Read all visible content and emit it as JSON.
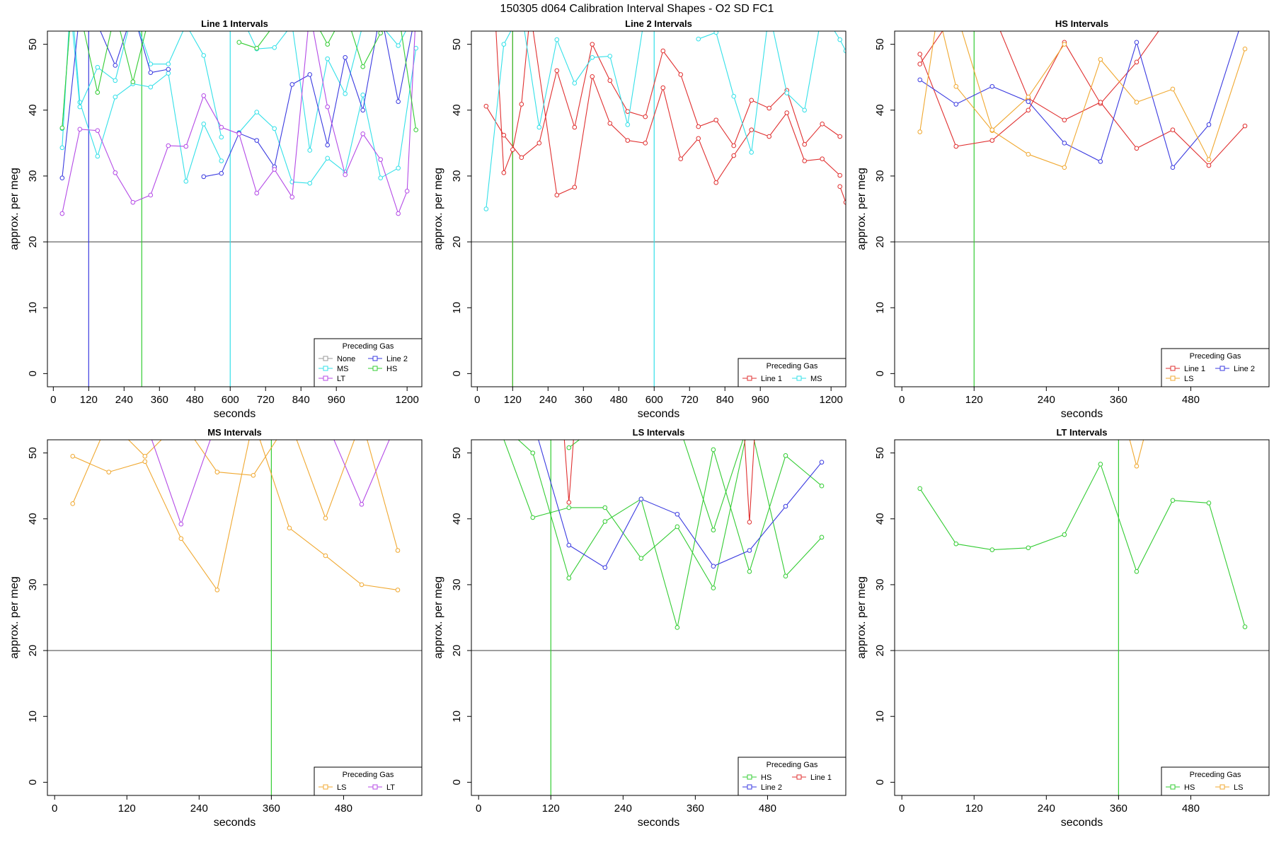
{
  "figure": {
    "title": "150305   d064   Calibration Interval Shapes - O2 SD FC1",
    "legend_title": "Preceding Gas"
  },
  "colors": {
    "None": "#999999",
    "MS": "#33e0e8",
    "LT": "#b44ae6",
    "Line 2": "#3a3ae0",
    "HS": "#33cc33",
    "Line 1": "#e03030",
    "LS": "#f0a830",
    "reference": "#555555",
    "frame": "#000000"
  },
  "chart_data": [
    {
      "type": "line",
      "title": "Line 1 Intervals",
      "xlabel": "seconds",
      "ylabel": "approx. per meg",
      "xlim": [
        -20,
        1250
      ],
      "ylim": [
        -2,
        52
      ],
      "xticks": [
        0,
        120,
        240,
        360,
        480,
        600,
        720,
        840,
        960,
        1200
      ],
      "yticks": [
        0,
        10,
        20,
        30,
        40,
        50
      ],
      "hline": 20,
      "vlines": [
        {
          "x": 120,
          "color": "#3a3ae0"
        },
        {
          "x": 300,
          "color": "#33cc33"
        },
        {
          "x": 600,
          "color": "#33e0e8"
        }
      ],
      "legend": {
        "position": "bottom-right",
        "columns": 2,
        "entries": [
          "None",
          "Line 2",
          "MS",
          "HS",
          "LT"
        ]
      },
      "series": [
        {
          "name": "MS",
          "x": [
            30,
            60,
            90,
            150,
            210,
            270,
            330,
            390,
            450,
            510,
            570
          ],
          "y": [
            34.3,
            58,
            41.2,
            33,
            42,
            44,
            43.5,
            45.6,
            29.2,
            37.9,
            32.3
          ]
        },
        {
          "name": "MS",
          "x": [
            30,
            60,
            90,
            150,
            210,
            270,
            330,
            390,
            450,
            510,
            570
          ],
          "y": [
            37.2,
            55,
            40.5,
            46.5,
            44.5,
            55,
            47,
            47,
            53,
            48.3,
            35.9
          ]
        },
        {
          "name": "MS",
          "x": [
            630,
            690,
            750,
            810,
            870,
            930,
            990,
            1050,
            1110,
            1170,
            1230
          ],
          "y": [
            36.6,
            39.7,
            37.2,
            29.1,
            28.9,
            32.7,
            30.6,
            42.3,
            29.7,
            31.2,
            49.4
          ]
        },
        {
          "name": "MS",
          "x": [
            630,
            690,
            750,
            810,
            870,
            930,
            990,
            1050,
            1110,
            1170,
            1230
          ],
          "y": [
            55,
            49.3,
            49.5,
            53,
            33.9,
            47.8,
            42.5,
            53,
            53,
            49.8,
            55
          ]
        },
        {
          "name": "Line 2",
          "x": [
            30,
            90,
            150,
            210,
            270,
            330,
            390
          ],
          "y": [
            29.7,
            55,
            53,
            46.8,
            55,
            45.7,
            46.2
          ]
        },
        {
          "name": "Line 2",
          "x": [
            510,
            570,
            630,
            690,
            750,
            810,
            870,
            930,
            990,
            1050,
            1110,
            1170,
            1230
          ],
          "y": [
            29.9,
            30.4,
            36.5,
            35.4,
            31.4,
            43.9,
            45.4,
            34.7,
            48,
            40,
            55,
            41.3,
            55
          ]
        },
        {
          "name": "LT",
          "x": [
            30,
            90,
            150,
            210,
            270,
            330,
            390,
            450,
            510,
            570,
            630,
            690,
            750,
            810,
            870,
            930,
            990,
            1050,
            1110,
            1170,
            1200,
            1230
          ],
          "y": [
            24.3,
            37.1,
            36.9,
            30.5,
            26,
            27.1,
            34.6,
            34.5,
            42.2,
            37.4,
            36.4,
            27.4,
            31,
            26.8,
            55,
            40.5,
            30.2,
            36.4,
            32.5,
            24.3,
            27.7,
            55
          ]
        },
        {
          "name": "HS",
          "x": [
            30,
            60,
            90,
            150,
            210,
            270,
            330
          ],
          "y": [
            37.3,
            55,
            55,
            42.7,
            55,
            44.3,
            55
          ]
        },
        {
          "name": "HS",
          "x": [
            630,
            690,
            750,
            810,
            870,
            930,
            990,
            1050,
            1110,
            1170,
            1230
          ],
          "y": [
            50.3,
            49.4,
            53,
            55,
            55,
            50,
            55,
            46.6,
            51.7,
            55,
            37
          ]
        }
      ]
    },
    {
      "type": "line",
      "title": "Line 2 Intervals",
      "xlabel": "seconds",
      "ylabel": "approx. per meg",
      "xlim": [
        -20,
        1250
      ],
      "ylim": [
        -2,
        52
      ],
      "xticks": [
        0,
        120,
        240,
        360,
        480,
        600,
        720,
        840,
        960,
        1200
      ],
      "yticks": [
        0,
        10,
        20,
        30,
        40,
        50
      ],
      "hline": 20,
      "vlines": [
        {
          "x": 120,
          "color": "#e03030"
        },
        {
          "x": 120,
          "color": "#33cc33"
        },
        {
          "x": 600,
          "color": "#33e0e8"
        }
      ],
      "legend": {
        "position": "bottom-right",
        "columns": 2,
        "entries": [
          "Line 1",
          "MS"
        ]
      },
      "series": [
        {
          "name": "Line 1",
          "x": [
            30,
            90,
            150,
            210,
            270,
            330,
            390,
            450,
            510,
            570,
            630,
            690,
            750,
            810,
            870,
            930,
            990,
            1050,
            1110,
            1170,
            1230
          ],
          "y": [
            40.6,
            36.2,
            32.8,
            35,
            46,
            37.4,
            50,
            44.5,
            39.8,
            39,
            49,
            45.4,
            37.5,
            38.5,
            34.6,
            41.5,
            40.3,
            43,
            34.8,
            37.9,
            36
          ]
        },
        {
          "name": "Line 1",
          "x": [
            60,
            90,
            120,
            150,
            180,
            270,
            330,
            390,
            450,
            510,
            570,
            630,
            690,
            750,
            810,
            870,
            930,
            990,
            1050,
            1110,
            1170,
            1230
          ],
          "y": [
            55,
            30.5,
            34,
            40.9,
            55,
            27.1,
            28.3,
            45.1,
            38,
            35.4,
            35,
            43.4,
            32.6,
            35.7,
            29,
            33.1,
            37,
            36,
            39.6,
            32.3,
            32.6,
            30.1
          ]
        },
        {
          "name": "Line 1",
          "x": [
            1230,
            1250
          ],
          "y": [
            28.4,
            26
          ]
        },
        {
          "name": "MS",
          "x": [
            30,
            90,
            150,
            210,
            270,
            330,
            390,
            450,
            510,
            570
          ],
          "y": [
            25,
            50,
            55,
            37.4,
            50.7,
            44.1,
            48,
            48.2,
            37.8,
            55
          ]
        },
        {
          "name": "MS",
          "x": [
            750,
            810,
            870,
            930,
            990,
            1050,
            1110,
            1170,
            1230,
            1250
          ],
          "y": [
            50.8,
            51.8,
            42.1,
            33.6,
            55,
            42.6,
            40,
            55,
            50.7,
            49
          ]
        }
      ]
    },
    {
      "type": "line",
      "title": "HS Intervals",
      "xlabel": "seconds",
      "ylabel": "approx. per meg",
      "xlim": [
        -12,
        610
      ],
      "ylim": [
        -2,
        52
      ],
      "xticks": [
        0,
        120,
        240,
        360,
        480
      ],
      "yticks": [
        0,
        10,
        20,
        30,
        40,
        50
      ],
      "hline": 20,
      "vlines": [
        {
          "x": 120,
          "color": "#33cc33"
        }
      ],
      "legend": {
        "position": "bottom-right",
        "columns": 2,
        "entries": [
          "Line 1",
          "Line 2",
          "LS"
        ]
      },
      "series": [
        {
          "name": "Line 1",
          "x": [
            30,
            90,
            150,
            210,
            270,
            330,
            390,
            450,
            510,
            570
          ],
          "y": [
            48.5,
            34.5,
            35.4,
            40,
            50.3,
            41,
            47.3,
            55,
            55,
            55
          ]
        },
        {
          "name": "Line 1",
          "x": [
            30,
            90,
            150,
            210,
            270,
            330,
            390,
            450,
            510,
            570
          ],
          "y": [
            47,
            55,
            55,
            41.8,
            38.5,
            41.2,
            34.2,
            37,
            31.6,
            37.6
          ]
        },
        {
          "name": "Line 2",
          "x": [
            30,
            90,
            150,
            210,
            270,
            330,
            390,
            450,
            510,
            570
          ],
          "y": [
            44.6,
            40.9,
            43.6,
            41.3,
            35,
            32.2,
            50.3,
            31.3,
            37.8,
            55
          ]
        },
        {
          "name": "LS",
          "x": [
            30,
            60,
            90,
            150,
            210,
            270,
            330,
            390,
            450,
            510,
            570
          ],
          "y": [
            36.7,
            55,
            43.6,
            36.9,
            33.3,
            31.3,
            47.7,
            41.2,
            43.2,
            32.5,
            49.3
          ]
        },
        {
          "name": "LS",
          "x": [
            30,
            90,
            150,
            210,
            270
          ],
          "y": [
            55,
            55,
            37,
            42,
            50
          ]
        }
      ]
    },
    {
      "type": "line",
      "title": "MS Intervals",
      "xlabel": "seconds",
      "ylabel": "approx. per meg",
      "xlim": [
        -12,
        610
      ],
      "ylim": [
        -2,
        52
      ],
      "xticks": [
        0,
        120,
        240,
        360,
        480
      ],
      "yticks": [
        0,
        10,
        20,
        30,
        40,
        50
      ],
      "hline": 20,
      "vlines": [
        {
          "x": 360,
          "color": "#33cc33"
        }
      ],
      "legend": {
        "position": "bottom-right",
        "columns": 2,
        "entries": [
          "LS",
          "LT"
        ]
      },
      "series": [
        {
          "name": "LS",
          "x": [
            30,
            90,
            150,
            210,
            270,
            330,
            390,
            450,
            510,
            570
          ],
          "y": [
            49.5,
            47.1,
            48.7,
            37,
            29.2,
            55,
            38.6,
            34.4,
            30,
            29.2
          ]
        },
        {
          "name": "LS",
          "x": [
            30,
            90,
            150,
            210,
            270,
            330,
            390,
            450,
            510,
            570
          ],
          "y": [
            42.3,
            55,
            49.5,
            55,
            47.1,
            46.6,
            55,
            40.1,
            55,
            35.2
          ]
        },
        {
          "name": "LT",
          "x": [
            150,
            210,
            270,
            330,
            390,
            450,
            510,
            570
          ],
          "y": [
            55,
            39.2,
            55,
            55,
            55,
            55,
            42.2,
            55
          ]
        }
      ]
    },
    {
      "type": "line",
      "title": "LS Intervals",
      "xlabel": "seconds",
      "ylabel": "approx. per meg",
      "xlim": [
        -12,
        610
      ],
      "ylim": [
        -2,
        52
      ],
      "xticks": [
        0,
        120,
        240,
        360,
        480
      ],
      "yticks": [
        0,
        10,
        20,
        30,
        40,
        50
      ],
      "hline": 20,
      "vlines": [
        {
          "x": 120,
          "color": "#33cc33"
        }
      ],
      "legend": {
        "position": "bottom-right",
        "columns": 2,
        "entries": [
          "HS",
          "Line 1",
          "Line 2"
        ]
      },
      "series": [
        {
          "name": "HS",
          "x": [
            30,
            90,
            150,
            210,
            270,
            330,
            390,
            450,
            510,
            570
          ],
          "y": [
            55,
            50,
            31,
            39.6,
            43,
            23.5,
            50.5,
            32,
            49.6,
            45
          ]
        },
        {
          "name": "HS",
          "x": [
            30,
            90,
            150,
            210,
            270,
            330,
            390,
            450,
            510,
            570
          ],
          "y": [
            55,
            40.2,
            41.7,
            41.7,
            34,
            38.8,
            29.5,
            55,
            31.3,
            37.2
          ]
        },
        {
          "name": "HS",
          "x": [
            150,
            210,
            330,
            390,
            450,
            510
          ],
          "y": [
            50.8,
            55,
            55,
            38.3,
            55,
            55
          ]
        },
        {
          "name": "Line 2",
          "x": [
            90,
            150,
            210,
            270,
            330,
            390,
            450,
            510,
            570
          ],
          "y": [
            55,
            36,
            32.6,
            43,
            40.7,
            32.8,
            35.2,
            41.9,
            48.6
          ]
        },
        {
          "name": "Line 1",
          "x": [
            140,
            150,
            160
          ],
          "y": [
            55,
            42.5,
            55
          ]
        },
        {
          "name": "Line 1",
          "x": [
            440,
            450,
            460
          ],
          "y": [
            55,
            39.5,
            55
          ]
        }
      ]
    },
    {
      "type": "line",
      "title": "LT Intervals",
      "xlabel": "seconds",
      "ylabel": "approx. per meg",
      "xlim": [
        -12,
        610
      ],
      "ylim": [
        -2,
        52
      ],
      "xticks": [
        0,
        120,
        240,
        360,
        480
      ],
      "yticks": [
        0,
        10,
        20,
        30,
        40,
        50
      ],
      "hline": 20,
      "vlines": [
        {
          "x": 360,
          "color": "#33cc33"
        }
      ],
      "legend": {
        "position": "bottom-right",
        "columns": 2,
        "entries": [
          "HS",
          "LS"
        ]
      },
      "series": [
        {
          "name": "HS",
          "x": [
            30,
            90,
            150,
            210,
            270,
            330,
            390,
            450,
            510,
            570
          ],
          "y": [
            44.6,
            36.2,
            35.3,
            35.6,
            37.6,
            48.3,
            32,
            42.8,
            42.4,
            23.6
          ]
        },
        {
          "name": "LS",
          "x": [
            370,
            390,
            410
          ],
          "y": [
            55,
            48,
            55
          ]
        }
      ]
    }
  ]
}
